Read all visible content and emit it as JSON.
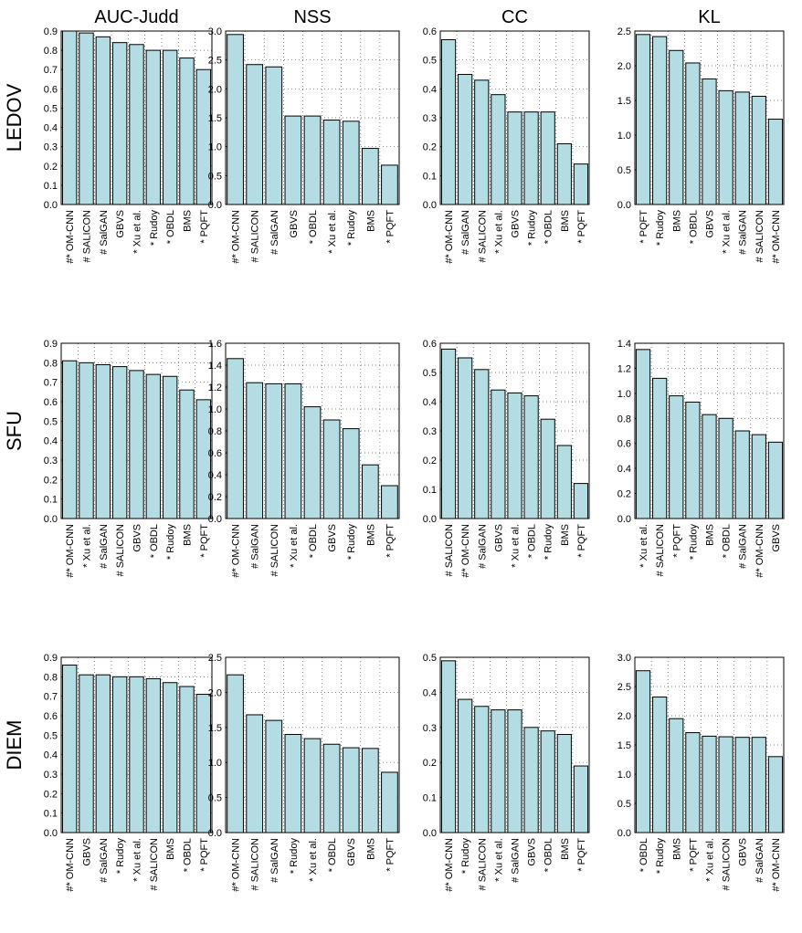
{
  "figure": {
    "columns": [
      "AUC-Judd",
      "NSS",
      "CC",
      "KL"
    ],
    "rows": [
      "LEDOV",
      "SFU",
      "DIEM"
    ],
    "bar_color": "#b3dde2"
  },
  "chart_data": [
    {
      "type": "bar",
      "dataset": "LEDOV",
      "metric": "AUC-Judd",
      "ylim": [
        0,
        0.9
      ],
      "yticks": [
        "0.0",
        "0.1",
        "0.2",
        "0.3",
        "0.4",
        "0.5",
        "0.6",
        "0.7",
        "0.8",
        "0.9"
      ],
      "categories": [
        "#* OM-CNN",
        "# SALICON",
        "# SalGAN",
        "GBVS",
        "* Xu et al.",
        "* Rudoy",
        "* OBDL",
        "BMS",
        "* PQFT"
      ],
      "values": [
        0.9,
        0.89,
        0.87,
        0.84,
        0.83,
        0.8,
        0.8,
        0.76,
        0.7
      ]
    },
    {
      "type": "bar",
      "dataset": "LEDOV",
      "metric": "NSS",
      "ylim": [
        0,
        3.0
      ],
      "yticks": [
        "0.0",
        "0.5",
        "1.0",
        "1.5",
        "2.0",
        "2.5",
        "3.0"
      ],
      "categories": [
        "#* OM-CNN",
        "# SALICON",
        "# SalGAN",
        "GBVS",
        "* OBDL",
        "* Xu et al.",
        "* Rudoy",
        "BMS",
        "* PQFT"
      ],
      "values": [
        2.94,
        2.42,
        2.38,
        1.53,
        1.53,
        1.46,
        1.44,
        0.97,
        0.68
      ]
    },
    {
      "type": "bar",
      "dataset": "LEDOV",
      "metric": "CC",
      "ylim": [
        0,
        0.6
      ],
      "yticks": [
        "0.0",
        "0.1",
        "0.2",
        "0.3",
        "0.4",
        "0.5",
        "0.6"
      ],
      "categories": [
        "#* OM-CNN",
        "# SalGAN",
        "# SALICON",
        "* Xu et al.",
        "GBVS",
        "* Rudoy",
        "* OBDL",
        "BMS",
        "* PQFT"
      ],
      "values": [
        0.57,
        0.45,
        0.43,
        0.38,
        0.32,
        0.32,
        0.32,
        0.21,
        0.14
      ]
    },
    {
      "type": "bar",
      "dataset": "LEDOV",
      "metric": "KL",
      "ylim": [
        0,
        2.5
      ],
      "yticks": [
        "0.0",
        "0.5",
        "1.0",
        "1.5",
        "2.0",
        "2.5"
      ],
      "categories": [
        "* PQFT",
        "* Rudoy",
        "BMS",
        "* OBDL",
        "GBVS",
        "* Xu et al.",
        "# SalGAN",
        "# SALICON",
        "#* OM-CNN"
      ],
      "values": [
        2.45,
        2.42,
        2.22,
        2.04,
        1.81,
        1.64,
        1.62,
        1.56,
        1.23
      ]
    },
    {
      "type": "bar",
      "dataset": "SFU",
      "metric": "AUC-Judd",
      "ylim": [
        0,
        0.9
      ],
      "yticks": [
        "0.0",
        "0.1",
        "0.2",
        "0.3",
        "0.4",
        "0.5",
        "0.6",
        "0.7",
        "0.8",
        "0.9"
      ],
      "categories": [
        "#* OM-CNN",
        "* Xu et al.",
        "# SalGAN",
        "# SALICON",
        "GBVS",
        "* OBDL",
        "* Rudoy",
        "BMS",
        "* PQFT"
      ],
      "values": [
        0.81,
        0.8,
        0.79,
        0.78,
        0.76,
        0.74,
        0.73,
        0.66,
        0.61
      ]
    },
    {
      "type": "bar",
      "dataset": "SFU",
      "metric": "NSS",
      "ylim": [
        0,
        1.6
      ],
      "yticks": [
        "0.0",
        "0.2",
        "0.4",
        "0.6",
        "0.8",
        "1.0",
        "1.2",
        "1.4",
        "1.6"
      ],
      "categories": [
        "#* OM-CNN",
        "# SalGAN",
        "# SALICON",
        "* Xu et al.",
        "* OBDL",
        "GBVS",
        "* Rudoy",
        "BMS",
        "* PQFT"
      ],
      "values": [
        1.46,
        1.24,
        1.23,
        1.23,
        1.02,
        0.9,
        0.82,
        0.49,
        0.3
      ]
    },
    {
      "type": "bar",
      "dataset": "SFU",
      "metric": "CC",
      "ylim": [
        0,
        0.6
      ],
      "yticks": [
        "0.0",
        "0.1",
        "0.2",
        "0.3",
        "0.4",
        "0.5",
        "0.6"
      ],
      "categories": [
        "# SALICON",
        "#* OM-CNN",
        "# SalGAN",
        "GBVS",
        "* Xu et al.",
        "* OBDL",
        "* Rudoy",
        "BMS",
        "* PQFT"
      ],
      "values": [
        0.58,
        0.55,
        0.51,
        0.44,
        0.43,
        0.42,
        0.34,
        0.25,
        0.12
      ]
    },
    {
      "type": "bar",
      "dataset": "SFU",
      "metric": "KL",
      "ylim": [
        0,
        1.4
      ],
      "yticks": [
        "0.0",
        "0.2",
        "0.4",
        "0.6",
        "0.8",
        "1.0",
        "1.2",
        "1.4"
      ],
      "categories": [
        "* Xu et al.",
        "# SALICON",
        "* PQFT",
        "* Rudoy",
        "BMS",
        "* OBDL",
        "# SalGAN",
        "#* OM-CNN",
        "GBVS"
      ],
      "values": [
        1.35,
        1.12,
        0.98,
        0.93,
        0.83,
        0.8,
        0.7,
        0.67,
        0.61
      ]
    },
    {
      "type": "bar",
      "dataset": "DIEM",
      "metric": "AUC-Judd",
      "ylim": [
        0,
        0.9
      ],
      "yticks": [
        "0.0",
        "0.1",
        "0.2",
        "0.3",
        "0.4",
        "0.5",
        "0.6",
        "0.7",
        "0.8",
        "0.9"
      ],
      "categories": [
        "#* OM-CNN",
        "GBVS",
        "# SalGAN",
        "* Rudoy",
        "* Xu et al.",
        "# SALICON",
        "BMS",
        "* OBDL",
        "* PQFT"
      ],
      "values": [
        0.86,
        0.81,
        0.81,
        0.8,
        0.8,
        0.79,
        0.77,
        0.75,
        0.71
      ]
    },
    {
      "type": "bar",
      "dataset": "DIEM",
      "metric": "NSS",
      "ylim": [
        0,
        2.5
      ],
      "yticks": [
        "0.0",
        "0.5",
        "1.0",
        "1.5",
        "2.0",
        "2.5"
      ],
      "categories": [
        "#* OM-CNN",
        "# SALICON",
        "# SalGAN",
        "* Rudoy",
        "* Xu et al.",
        "* OBDL",
        "GBVS",
        "BMS",
        "* PQFT"
      ],
      "values": [
        2.25,
        1.68,
        1.6,
        1.4,
        1.34,
        1.26,
        1.21,
        1.2,
        0.86
      ]
    },
    {
      "type": "bar",
      "dataset": "DIEM",
      "metric": "CC",
      "ylim": [
        0,
        0.5
      ],
      "yticks": [
        "0.0",
        "0.1",
        "0.2",
        "0.3",
        "0.4",
        "0.5"
      ],
      "categories": [
        "#* OM-CNN",
        "* Rudoy",
        "# SALICON",
        "* Xu et al.",
        "# SalGAN",
        "GBVS",
        "* OBDL",
        "BMS",
        "* PQFT"
      ],
      "values": [
        0.49,
        0.38,
        0.36,
        0.35,
        0.35,
        0.3,
        0.29,
        0.28,
        0.19
      ]
    },
    {
      "type": "bar",
      "dataset": "DIEM",
      "metric": "KL",
      "ylim": [
        0,
        3.0
      ],
      "yticks": [
        "0.0",
        "0.5",
        "1.0",
        "1.5",
        "2.0",
        "2.5",
        "3.0"
      ],
      "categories": [
        "* OBDL",
        "* Rudoy",
        "BMS",
        "* PQFT",
        "* Xu et al.",
        "# SALICON",
        "GBVS",
        "# SalGAN",
        "#* OM-CNN"
      ],
      "values": [
        2.77,
        2.32,
        1.95,
        1.71,
        1.65,
        1.64,
        1.63,
        1.63,
        1.3
      ]
    }
  ]
}
